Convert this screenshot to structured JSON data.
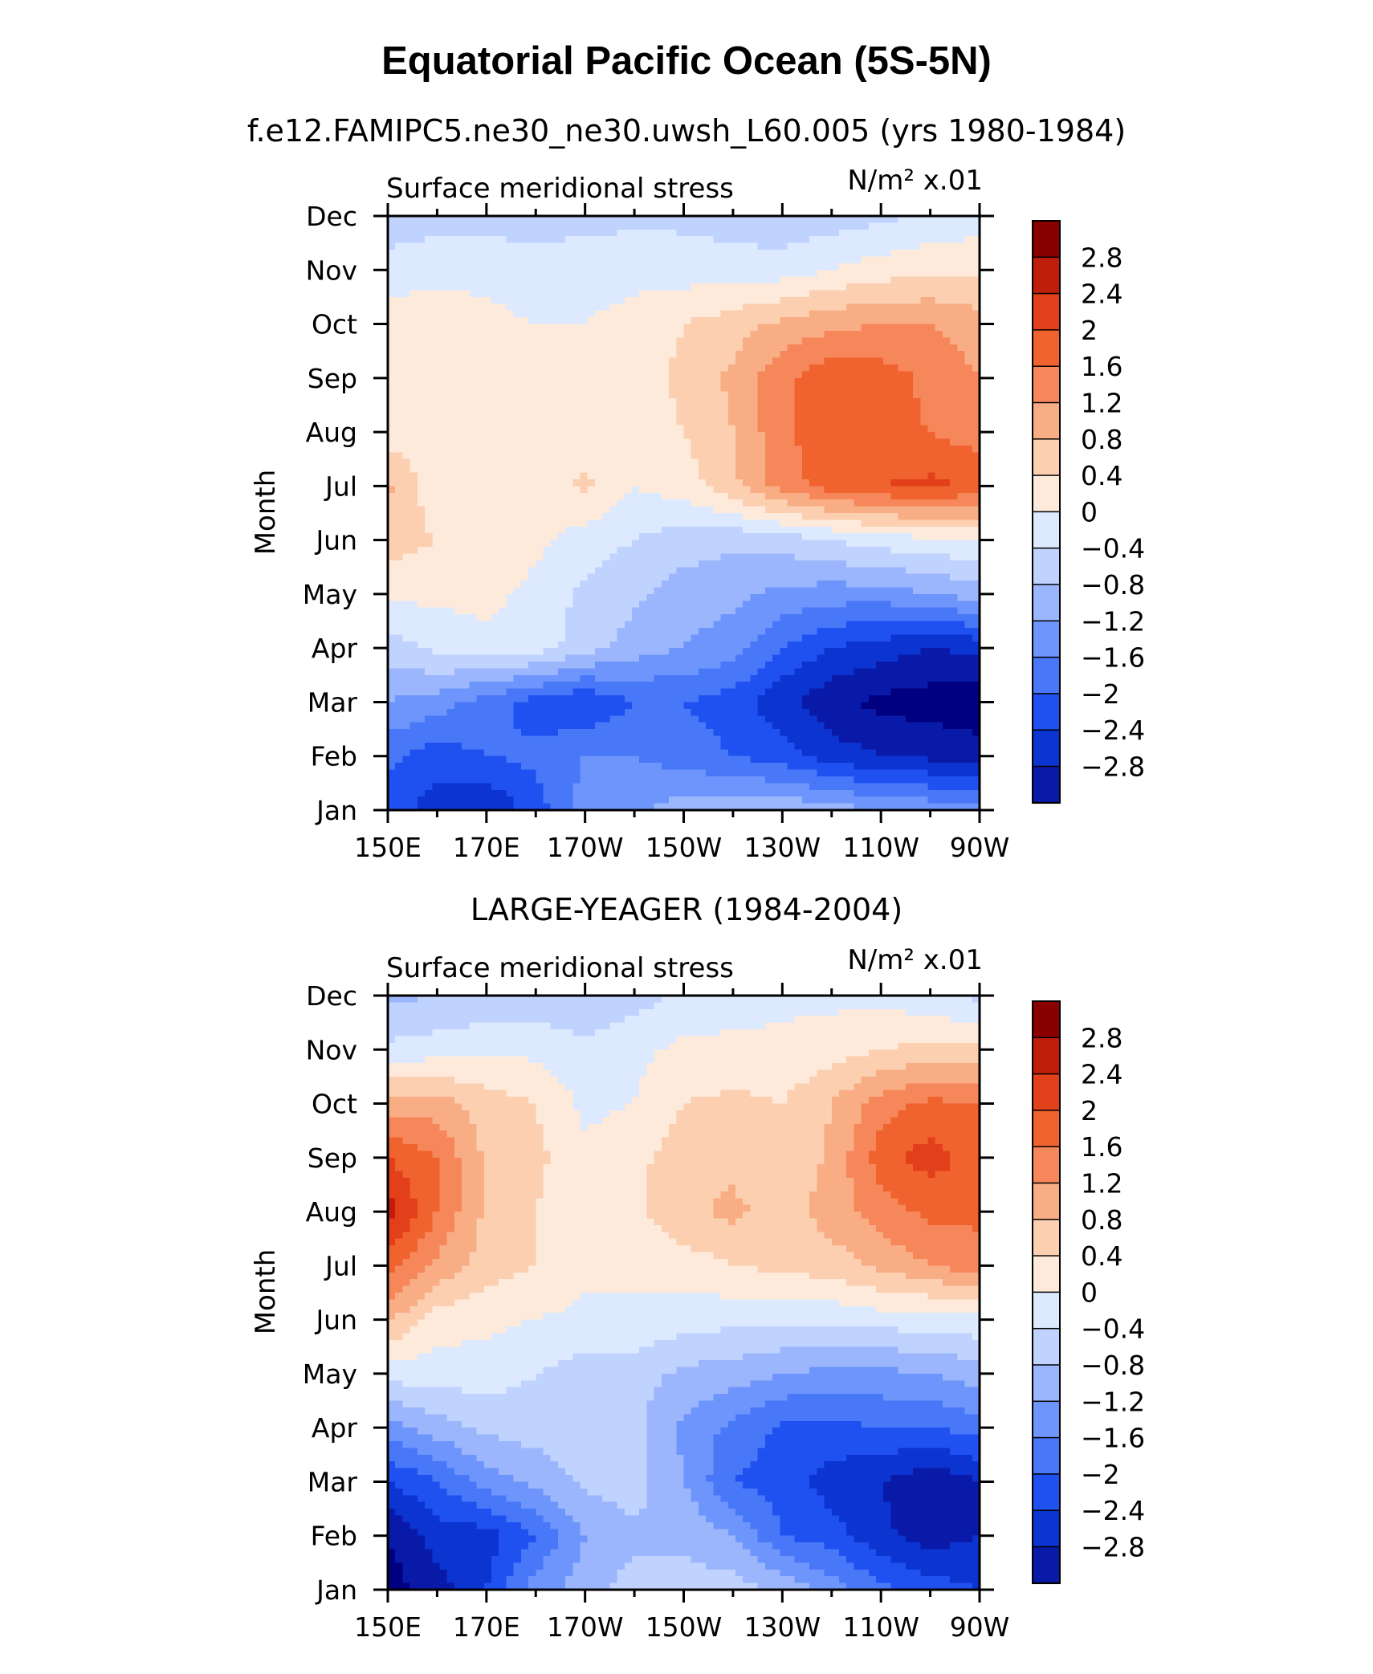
{
  "figure": {
    "title": "Equatorial Pacific Ocean (5S-5N)",
    "colors": [
      "#000080",
      "#0a1aa8",
      "#0b34d0",
      "#1f50f0",
      "#4878f8",
      "#6e95fb",
      "#9bb6fd",
      "#bfd3fe",
      "#dde9ff",
      "#fdeada",
      "#fbcfb0",
      "#f9ad85",
      "#f6875a",
      "#f0622e",
      "#e2401a",
      "#c01e0c",
      "#8a0000"
    ]
  },
  "chart_data": [
    {
      "type": "heatmap",
      "subtitle": "f.e12.FAMIPC5.ne30_ne30.uwsh_L60.005 (yrs 1980-1984)",
      "left_label": "Surface meridional stress",
      "unit_label": "N/m² x.01",
      "ylabel": "Month",
      "x_ticks": [
        "150E",
        "170E",
        "170W",
        "150W",
        "130W",
        "110W",
        "90W"
      ],
      "y_ticks": [
        "Jan",
        "Feb",
        "Mar",
        "Apr",
        "May",
        "Jun",
        "Jul",
        "Aug",
        "Sep",
        "Oct",
        "Nov",
        "Dec"
      ],
      "contour_levels": [
        -2.8,
        -2.4,
        -2,
        -1.6,
        -1.2,
        -0.8,
        -0.4,
        0,
        0.4,
        0.8,
        1.2,
        1.6,
        2,
        2.4,
        2.8
      ],
      "colorbar_labels": [
        "2.8",
        "2.4",
        "2",
        "1.6",
        "1.2",
        "0.8",
        "0.4",
        "0",
        "−0.4",
        "−0.8",
        "−1.2",
        "−1.6",
        "−2",
        "−2.4",
        "−2.8"
      ],
      "lon": [
        150,
        160,
        170,
        180,
        190,
        200,
        210,
        220,
        230,
        240,
        250,
        260,
        270
      ],
      "values": [
        [
          -1.8,
          -2.2,
          -2.4,
          -1.8,
          -1.0,
          -0.9,
          -0.6,
          -0.5,
          -0.5,
          -0.6,
          -0.8,
          -0.9,
          -1.0
        ],
        [
          -1.5,
          -1.8,
          -1.6,
          -1.5,
          -1.2,
          -1.2,
          -1.4,
          -1.6,
          -1.8,
          -2.2,
          -2.4,
          -2.5,
          -2.6
        ],
        [
          -0.8,
          -1.0,
          -1.4,
          -1.8,
          -2.0,
          -1.6,
          -1.6,
          -1.8,
          -2.3,
          -2.7,
          -2.9,
          -3.0,
          -3.1
        ],
        [
          -0.2,
          0.1,
          0.3,
          0.2,
          -0.2,
          -0.6,
          -0.8,
          -1.0,
          -1.6,
          -2.0,
          -2.2,
          -2.4,
          -2.3
        ],
        [
          0.5,
          0.5,
          0.5,
          0.3,
          -0.1,
          -0.3,
          -0.6,
          -0.7,
          -0.9,
          -1.0,
          -1.0,
          -0.8,
          -0.6
        ],
        [
          1.0,
          0.8,
          0.6,
          0.5,
          0.2,
          0.0,
          -0.2,
          -0.3,
          -0.2,
          0.0,
          0.2,
          0.3,
          0.4
        ],
        [
          1.3,
          0.5,
          0.5,
          0.5,
          0.9,
          0.4,
          0.6,
          1.1,
          1.8,
          2.2,
          2.4,
          2.5,
          2.3
        ],
        [
          0.6,
          0.5,
          0.5,
          0.5,
          0.6,
          0.6,
          0.8,
          1.2,
          1.9,
          2.3,
          2.1,
          2.0,
          1.8
        ],
        [
          0.8,
          0.6,
          0.5,
          0.5,
          0.5,
          0.6,
          0.9,
          1.3,
          1.9,
          2.3,
          2.2,
          1.9,
          1.6
        ],
        [
          0.6,
          0.6,
          0.5,
          0.4,
          0.4,
          0.5,
          0.8,
          1.0,
          1.3,
          1.5,
          1.6,
          1.6,
          1.4
        ],
        [
          0.2,
          0.3,
          0.3,
          0.2,
          0.3,
          0.3,
          0.2,
          0.2,
          0.2,
          0.4,
          0.6,
          0.7,
          0.7
        ],
        [
          -0.3,
          -0.2,
          -0.2,
          -0.2,
          -0.2,
          -0.1,
          -0.1,
          -0.2,
          -0.3,
          -0.2,
          -0.1,
          0.1,
          0.2
        ]
      ]
    },
    {
      "type": "heatmap",
      "subtitle": "LARGE-YEAGER (1984-2004)",
      "left_label": "Surface meridional stress",
      "unit_label": "N/m² x.01",
      "ylabel": "Month",
      "x_ticks": [
        "150E",
        "170E",
        "170W",
        "150W",
        "130W",
        "110W",
        "90W"
      ],
      "y_ticks": [
        "Jan",
        "Feb",
        "Mar",
        "Apr",
        "May",
        "Jun",
        "Jul",
        "Aug",
        "Sep",
        "Oct",
        "Nov",
        "Dec"
      ],
      "contour_levels": [
        -2.8,
        -2.4,
        -2,
        -1.6,
        -1.2,
        -0.8,
        -0.4,
        0,
        0.4,
        0.8,
        1.2,
        1.6,
        2,
        2.4,
        2.8
      ],
      "colorbar_labels": [
        "2.8",
        "2.4",
        "2",
        "1.6",
        "1.2",
        "0.8",
        "0.4",
        "0",
        "−0.4",
        "−0.8",
        "−1.2",
        "−1.6",
        "−2",
        "−2.4",
        "−2.8"
      ],
      "lon": [
        150,
        160,
        170,
        180,
        190,
        200,
        210,
        220,
        230,
        240,
        250,
        260,
        270
      ],
      "values": [
        [
          -3.0,
          -2.6,
          -2.0,
          -1.0,
          -0.6,
          -0.2,
          -0.2,
          -0.2,
          -0.5,
          -1.0,
          -1.5,
          -1.8,
          -2.0
        ],
        [
          -2.8,
          -2.2,
          -2.2,
          -1.6,
          -0.8,
          -0.5,
          -0.5,
          -0.8,
          -1.6,
          -1.8,
          -2.3,
          -2.6,
          -2.4
        ],
        [
          -2.0,
          -1.6,
          -1.0,
          -0.7,
          -0.3,
          -0.2,
          -0.8,
          -1.6,
          -1.8,
          -2.2,
          -2.4,
          -2.7,
          -2.4
        ],
        [
          -1.0,
          -0.6,
          -0.3,
          -0.2,
          -0.2,
          -0.3,
          -0.9,
          -1.3,
          -1.7,
          -1.7,
          -1.6,
          -1.6,
          -1.4
        ],
        [
          0.2,
          0.2,
          0.2,
          0.0,
          -0.2,
          -0.2,
          -0.5,
          -0.6,
          -0.8,
          -0.9,
          -0.9,
          -0.8,
          -0.6
        ],
        [
          1.3,
          0.6,
          0.5,
          0.4,
          0.3,
          0.3,
          0.2,
          0.1,
          0.1,
          0.1,
          0.2,
          0.2,
          0.3
        ],
        [
          2.2,
          1.5,
          1.0,
          0.8,
          0.5,
          0.5,
          0.6,
          0.8,
          0.9,
          1.0,
          1.3,
          1.6,
          1.8
        ],
        [
          3.0,
          2.0,
          1.1,
          0.8,
          0.5,
          0.7,
          1.1,
          1.3,
          1.0,
          1.4,
          1.8,
          2.1,
          2.1
        ],
        [
          2.4,
          2.0,
          1.1,
          0.9,
          0.5,
          0.7,
          1.0,
          1.1,
          0.8,
          1.3,
          2.2,
          2.6,
          2.2
        ],
        [
          1.4,
          1.4,
          1.0,
          0.8,
          0.3,
          0.4,
          0.8,
          0.9,
          0.8,
          1.2,
          1.8,
          2.1,
          2.0
        ],
        [
          0.1,
          0.2,
          0.3,
          0.3,
          0.1,
          0.3,
          0.5,
          0.5,
          0.5,
          0.6,
          0.8,
          0.9,
          0.9
        ],
        [
          -0.5,
          -0.4,
          -0.3,
          -0.3,
          -0.3,
          -0.2,
          0.1,
          0.2,
          0.3,
          0.3,
          0.3,
          0.1,
          -0.1
        ]
      ]
    }
  ]
}
